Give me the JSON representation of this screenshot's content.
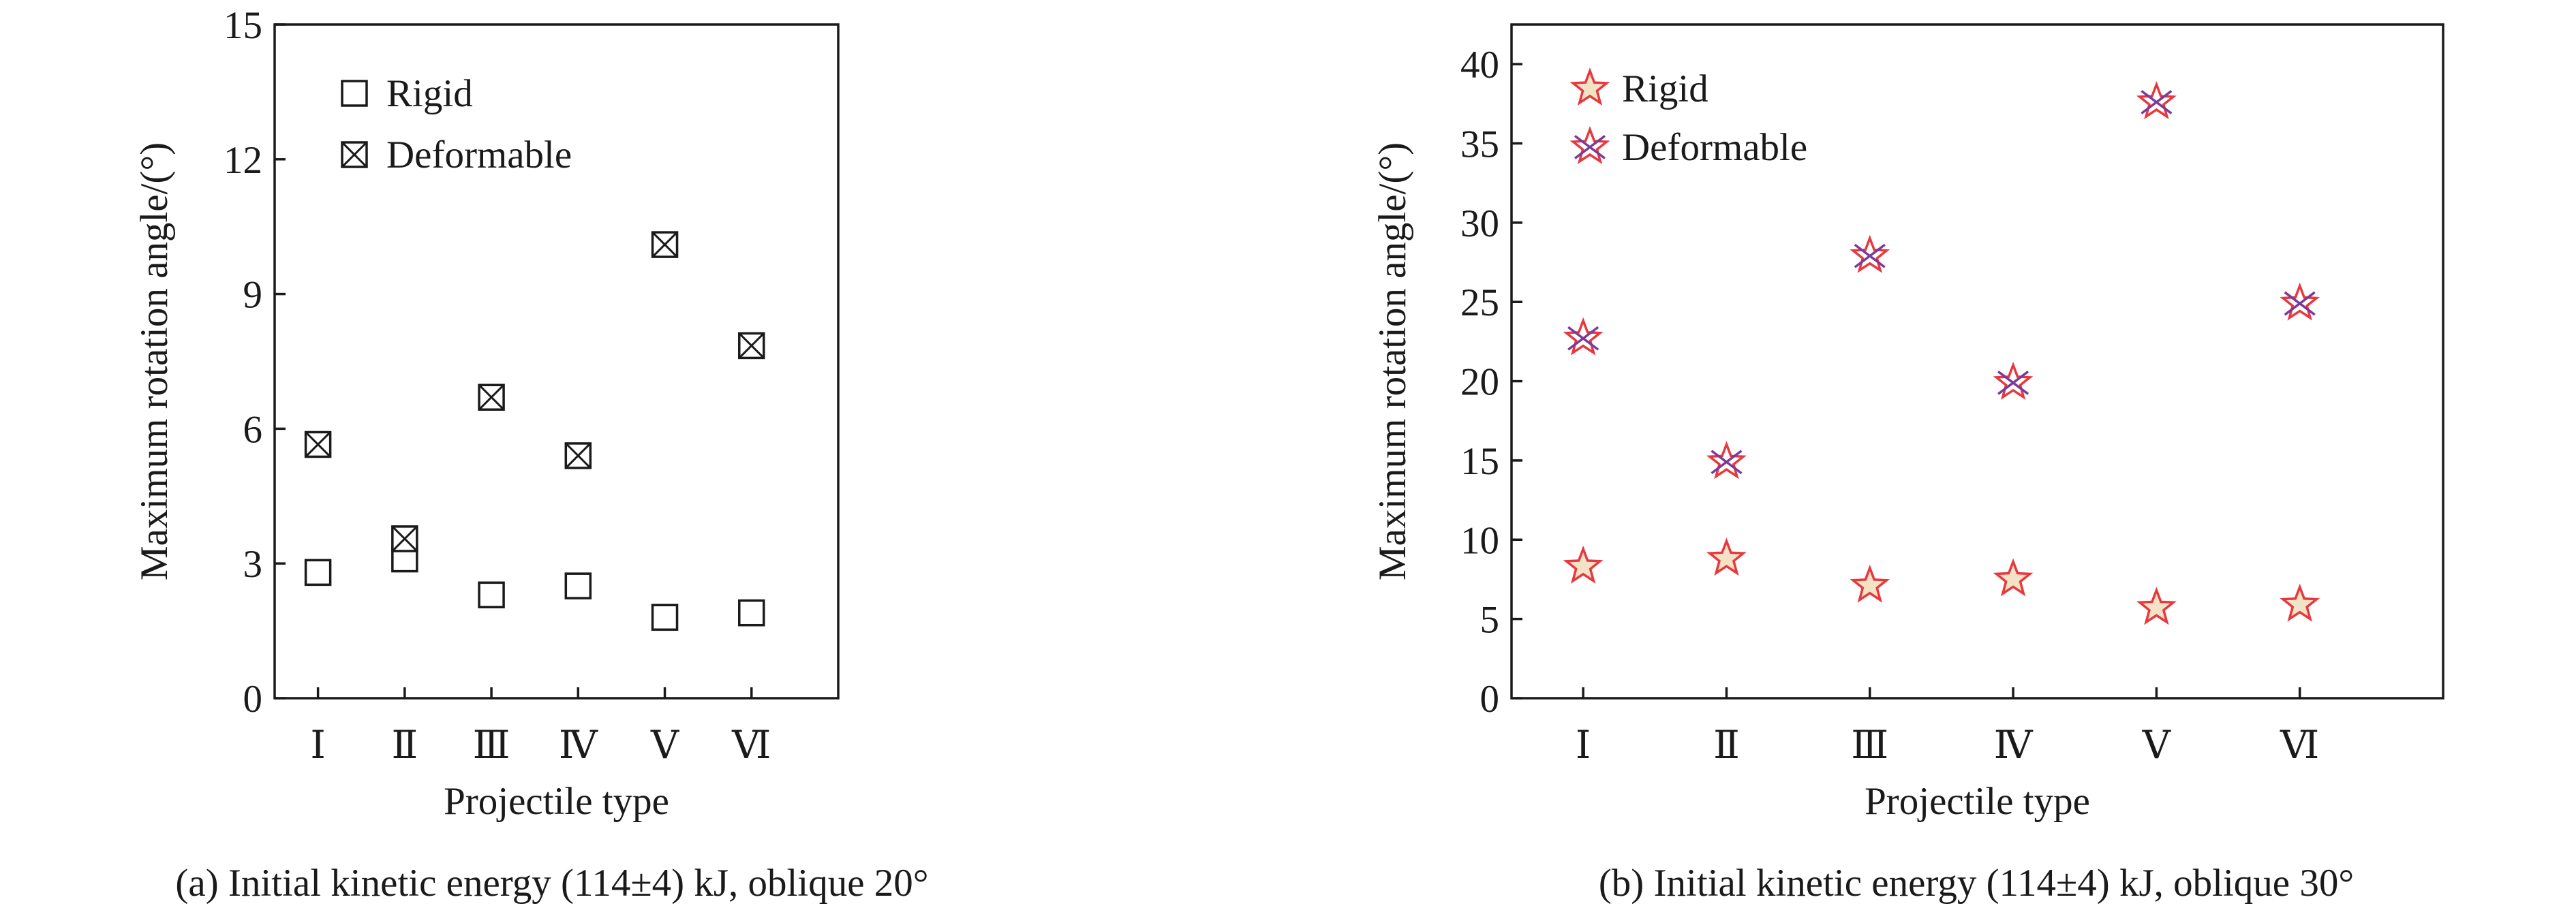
{
  "chart_data": [
    {
      "id": "a",
      "type": "scatter",
      "caption": "(a) Initial kinetic energy (114±4) kJ, oblique 20°",
      "xlabel": "Projectile type",
      "ylabel": "Maximum rotation angle/(°)",
      "categories": [
        "Ⅰ",
        "Ⅱ",
        "Ⅲ",
        "Ⅳ",
        "Ⅴ",
        "Ⅵ"
      ],
      "ylim": [
        0,
        15
      ],
      "yticks": [
        0,
        3,
        6,
        9,
        12,
        15
      ],
      "grid": false,
      "legend": "top-left",
      "series": [
        {
          "name": "Rigid",
          "marker": "square",
          "color": "#1a1a1a",
          "values": [
            2.8,
            3.1,
            2.3,
            2.5,
            1.8,
            1.9
          ]
        },
        {
          "name": "Deformable",
          "marker": "square-x",
          "color": "#1a1a1a",
          "values": [
            5.65,
            3.55,
            6.7,
            5.4,
            10.1,
            7.85
          ]
        }
      ]
    },
    {
      "id": "b",
      "type": "scatter",
      "caption": "(b) Initial kinetic energy (114±4) kJ, oblique 30°",
      "xlabel": "Projectile type",
      "ylabel": "Maximum rotation angle/(°)",
      "categories": [
        "Ⅰ",
        "Ⅱ",
        "Ⅲ",
        "Ⅳ",
        "Ⅴ",
        "Ⅵ"
      ],
      "ylim": [
        0,
        42.5
      ],
      "yticks": [
        0,
        5,
        10,
        15,
        20,
        25,
        30,
        35,
        40
      ],
      "grid": false,
      "legend": "top-left",
      "series": [
        {
          "name": "Rigid",
          "marker": "star",
          "color": "#e8383d",
          "fill": "#f3e3c6",
          "values": [
            8.3,
            8.8,
            7.1,
            7.5,
            5.7,
            5.9
          ]
        },
        {
          "name": "Deformable",
          "marker": "star-x",
          "color": "#e8383d",
          "accent": "#7a3a9a",
          "values": [
            22.7,
            14.9,
            27.9,
            19.9,
            37.6,
            24.9
          ]
        }
      ]
    }
  ]
}
